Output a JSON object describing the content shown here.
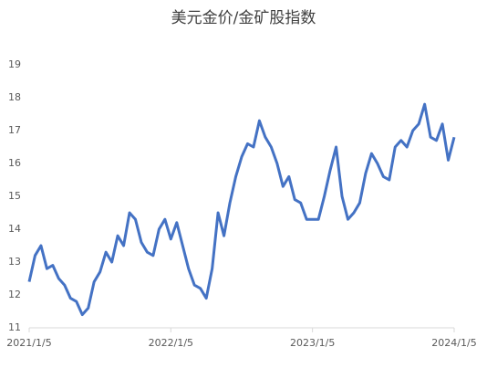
{
  "chart_data": {
    "type": "line",
    "title": "美元金价/金矿股指数",
    "categories": [
      "2021/1/5",
      null,
      null,
      null,
      null,
      null,
      null,
      null,
      null,
      null,
      null,
      null,
      null,
      null,
      null,
      null,
      null,
      null,
      null,
      null,
      null,
      null,
      null,
      null,
      "2022/1/5",
      null,
      null,
      null,
      null,
      null,
      null,
      null,
      null,
      null,
      null,
      null,
      null,
      null,
      null,
      null,
      null,
      null,
      null,
      null,
      null,
      null,
      null,
      null,
      "2023/1/5",
      null,
      null,
      null,
      null,
      null,
      null,
      null,
      null,
      null,
      null,
      null,
      null,
      null,
      null,
      null,
      null,
      null,
      null,
      null,
      null,
      null,
      null,
      null,
      "2024/1/5"
    ],
    "series": [
      {
        "name": null,
        "color": "#4472c4",
        "values": [
          12.4,
          13.2,
          13.5,
          12.8,
          12.9,
          12.5,
          12.3,
          11.9,
          11.8,
          11.4,
          11.6,
          12.4,
          12.7,
          13.3,
          13.0,
          13.8,
          13.5,
          14.5,
          14.3,
          13.6,
          13.3,
          13.2,
          14.0,
          14.3,
          13.7,
          14.2,
          13.5,
          12.8,
          12.3,
          12.2,
          11.9,
          12.8,
          14.5,
          13.8,
          14.8,
          15.6,
          16.2,
          16.6,
          16.5,
          17.3,
          16.8,
          16.5,
          16.0,
          15.3,
          15.6,
          14.9,
          14.8,
          14.3,
          14.3,
          14.3,
          15.0,
          15.8,
          16.5,
          15.0,
          14.3,
          14.5,
          14.8,
          15.7,
          16.3,
          16.0,
          15.6,
          15.5,
          16.5,
          16.7,
          16.5,
          17.0,
          17.2,
          17.8,
          16.8,
          16.7,
          17.2,
          16.1,
          16.8
        ]
      }
    ],
    "ylim": [
      11,
      19
    ],
    "yticks": [
      11,
      12,
      13,
      14,
      15,
      16,
      17,
      18,
      19
    ],
    "grid": false
  }
}
